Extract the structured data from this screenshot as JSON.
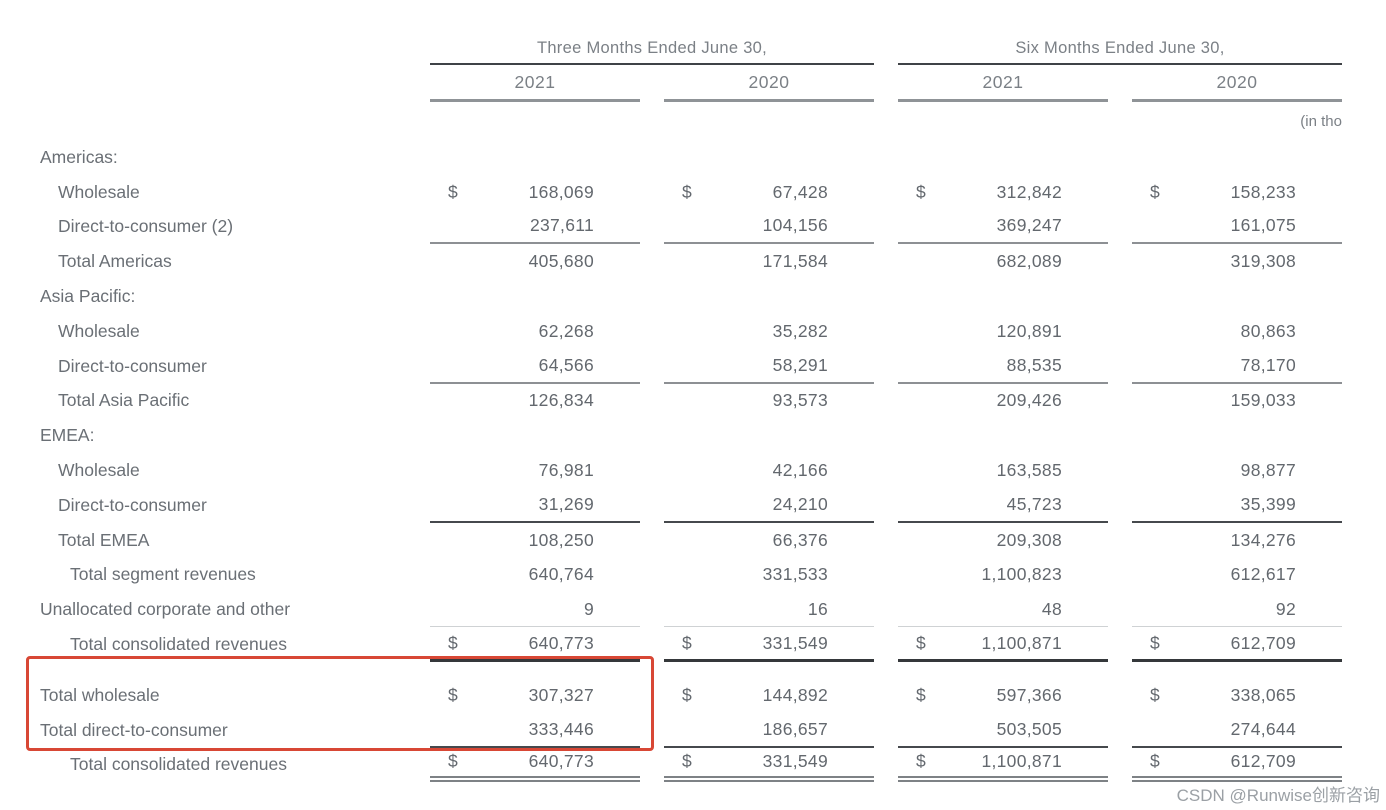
{
  "page": {
    "note": "(in tho",
    "watermark": "CSDN @Runwise创新咨询",
    "accent_red": "#d84735"
  },
  "header": {
    "groups": [
      {
        "label": "Three Months Ended June 30,",
        "years": [
          "2021",
          "2020"
        ]
      },
      {
        "label": "Six Months Ended June 30,",
        "years": [
          "2021",
          "2020"
        ]
      }
    ]
  },
  "table": {
    "columns": [
      "Three Months Ended June 30, 2021",
      "Three Months Ended June 30, 2020",
      "Six Months Ended June 30, 2021",
      "Six Months Ended June 30, 2020"
    ],
    "rows": [
      {
        "label": "Americas:",
        "indent": 0,
        "values": null
      },
      {
        "label": "Wholesale",
        "indent": 1,
        "dollar": true,
        "values": [
          "168,069",
          "67,428",
          "312,842",
          "158,233"
        ]
      },
      {
        "label": "Direct-to-consumer (2)",
        "indent": 1,
        "values": [
          "237,611",
          "104,156",
          "369,247",
          "161,075"
        ],
        "rule": "med"
      },
      {
        "label": "Total Americas",
        "indent": 1,
        "values": [
          "405,680",
          "171,584",
          "682,089",
          "319,308"
        ]
      },
      {
        "label": "Asia Pacific:",
        "indent": 0,
        "values": null
      },
      {
        "label": "Wholesale",
        "indent": 1,
        "values": [
          "62,268",
          "35,282",
          "120,891",
          "80,863"
        ]
      },
      {
        "label": "Direct-to-consumer",
        "indent": 1,
        "values": [
          "64,566",
          "58,291",
          "88,535",
          "78,170"
        ],
        "rule": "med"
      },
      {
        "label": "Total Asia Pacific",
        "indent": 1,
        "values": [
          "126,834",
          "93,573",
          "209,426",
          "159,033"
        ]
      },
      {
        "label": "EMEA:",
        "indent": 0,
        "values": null
      },
      {
        "label": "Wholesale",
        "indent": 1,
        "values": [
          "76,981",
          "42,166",
          "163,585",
          "98,877"
        ]
      },
      {
        "label": "Direct-to-consumer",
        "indent": 1,
        "values": [
          "31,269",
          "24,210",
          "45,723",
          "35,399"
        ],
        "rule": "dark"
      },
      {
        "label": "Total EMEA",
        "indent": 1,
        "values": [
          "108,250",
          "66,376",
          "209,308",
          "134,276"
        ]
      },
      {
        "label": "Total segment revenues",
        "indent": 2,
        "values": [
          "640,764",
          "331,533",
          "1,100,823",
          "612,617"
        ]
      },
      {
        "label": "Unallocated corporate and other",
        "indent": 0,
        "values": [
          "9",
          "16",
          "48",
          "92"
        ],
        "rule": "light"
      },
      {
        "label": "Total consolidated revenues",
        "indent": 2,
        "dollar": true,
        "values": [
          "640,773",
          "331,549",
          "1,100,871",
          "612,709"
        ],
        "rule": "heavy"
      },
      {
        "label": "Total wholesale",
        "indent": 0,
        "dollar": true,
        "values": [
          "307,327",
          "144,892",
          "597,366",
          "338,065"
        ],
        "boxed": true,
        "spacer": true
      },
      {
        "label": "Total direct-to-consumer",
        "indent": 0,
        "values": [
          "333,446",
          "186,657",
          "503,505",
          "274,644"
        ],
        "boxed": true,
        "rule": "dark"
      },
      {
        "label": "Total consolidated revenues",
        "indent": 2,
        "dollar": true,
        "values": [
          "640,773",
          "331,549",
          "1,100,871",
          "612,709"
        ],
        "rule": "double"
      }
    ]
  }
}
